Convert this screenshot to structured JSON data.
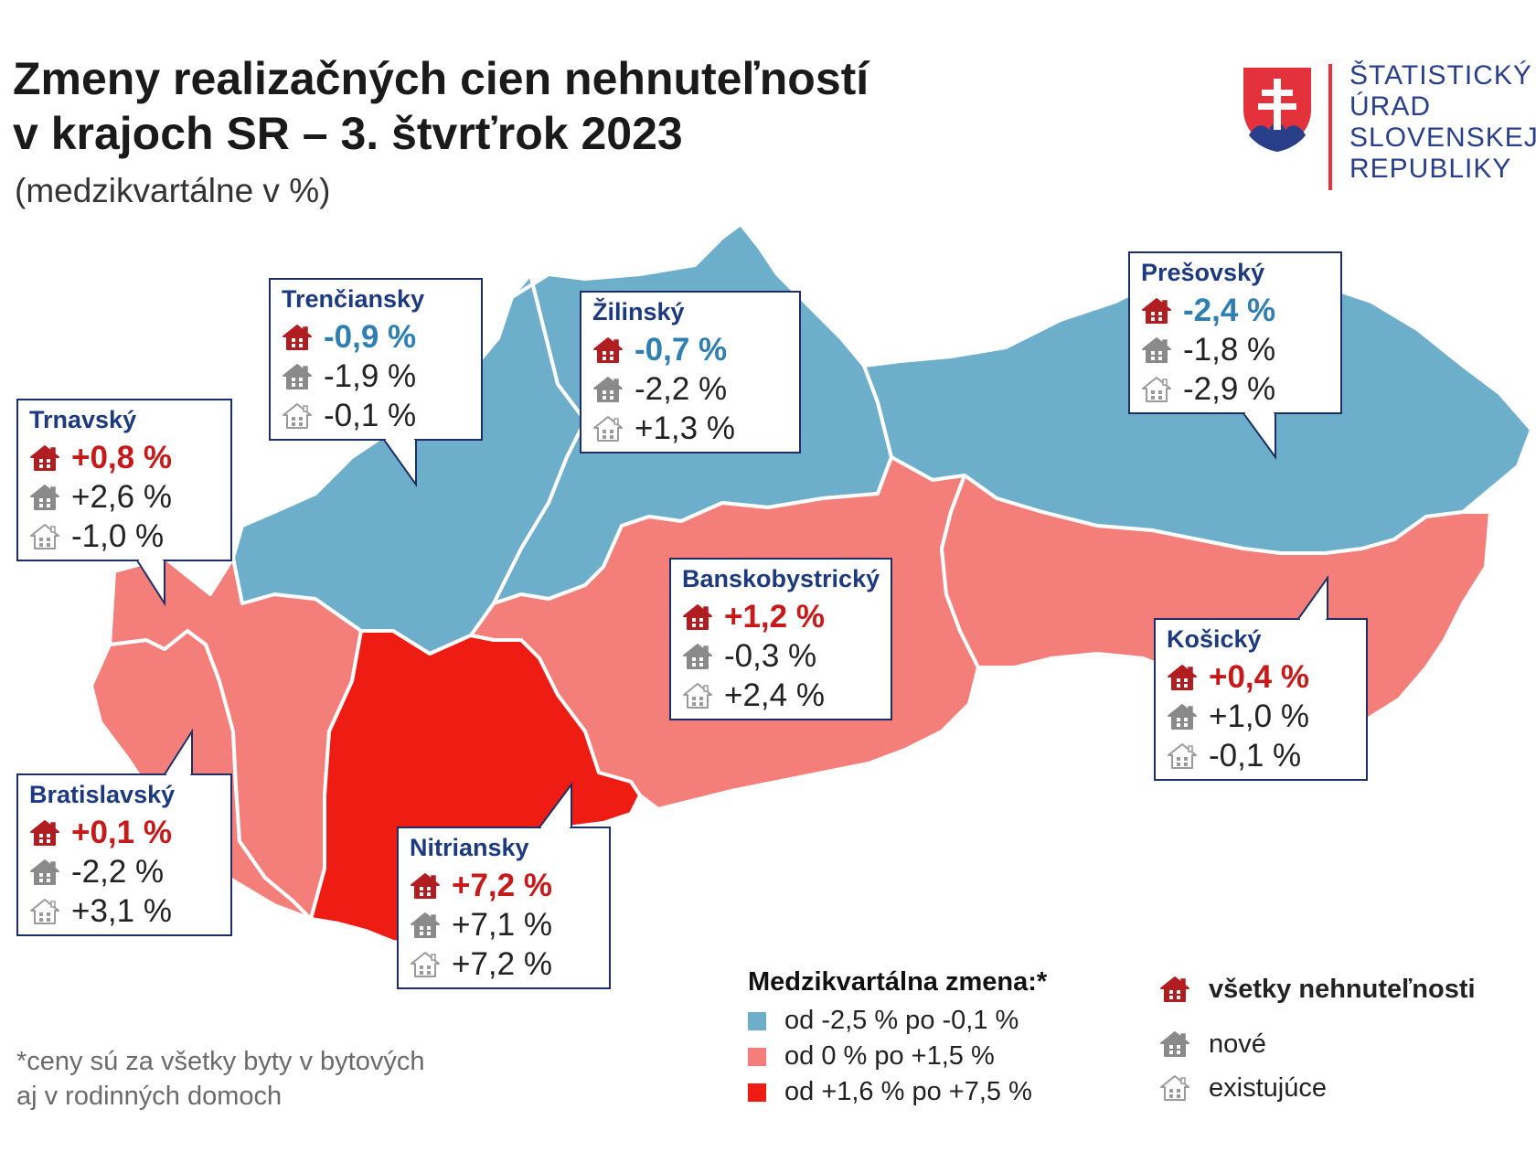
{
  "title_line1": "Zmeny realizačných cien nehnuteľností",
  "title_line2": "v krajoch SR – 3. štvrťrok 2023",
  "subtitle": "(medzikvartálne v %)",
  "logo": {
    "lines": [
      "ŠTATISTICKÝ",
      "ÚRAD",
      "SLOVENSKEJ",
      "REPUBLIKY"
    ]
  },
  "regions": [
    {
      "id": "trnavsky",
      "name": "Trnavský",
      "all": "+0,8 %",
      "new": "+2,6 %",
      "existing": "-1,0 %",
      "category": "od 0 % po +1,5 %"
    },
    {
      "id": "trenciansky",
      "name": "Trenčiansky",
      "all": "-0,9 %",
      "new": "-1,9 %",
      "existing": "-0,1 %",
      "category": "od -2,5 %  po -0,1 %"
    },
    {
      "id": "zilinsky",
      "name": "Žilinský",
      "all": "-0,7 %",
      "new": "-2,2 %",
      "existing": "+1,3 %",
      "category": "od -2,5 %  po -0,1 %"
    },
    {
      "id": "presovsky",
      "name": "Prešovský",
      "all": "-2,4 %",
      "new": "-1,8 %",
      "existing": "-2,9 %",
      "category": "od -2,5 %  po -0,1 %"
    },
    {
      "id": "banskobystricky",
      "name": "Banskobystrický",
      "all": "+1,2 %",
      "new": "-0,3 %",
      "existing": "+2,4 %",
      "category": "od 0 % po +1,5 %"
    },
    {
      "id": "kosicky",
      "name": "Košický",
      "all": "+0,4 %",
      "new": "+1,0 %",
      "existing": "-0,1 %",
      "category": "od 0 % po +1,5 %"
    },
    {
      "id": "bratislavsky",
      "name": "Bratislavský",
      "all": "+0,1 %",
      "new": "-2,2 %",
      "existing": "+3,1 %",
      "category": "od 0 % po +1,5 %"
    },
    {
      "id": "nitriansky",
      "name": "Nitriansky",
      "all": "+7,2 %",
      "new": "+7,1 %",
      "existing": "+7,2 %",
      "category": "od +1,6 % po +7,5 %"
    }
  ],
  "legend": {
    "title": "Medzikvartálna zmena:*",
    "items": [
      {
        "label": "od -2,5 %  po -0,1 %",
        "color": "#6daecb"
      },
      {
        "label": "od 0 % po +1,5 %",
        "color": "#f47f7a"
      },
      {
        "label": "od +1,6 % po +7,5 %",
        "color": "#ee1c13"
      }
    ]
  },
  "legend_types": {
    "all": "všetky nehnuteľnosti",
    "new": "nové",
    "existing": "existujúce"
  },
  "footnote_line1": "*ceny sú za všetky byty v bytových",
  "footnote_line2": "aj v rodinných domoch",
  "colors": {
    "low": "#6daecb",
    "mid": "#f47f7a",
    "high": "#ee1c13",
    "house_all": "#b11e22",
    "house_new": "#8a8a8a",
    "house_existing": "#ffffff",
    "box_border": "#1e2f66",
    "region_name": "#1e3a7e"
  }
}
